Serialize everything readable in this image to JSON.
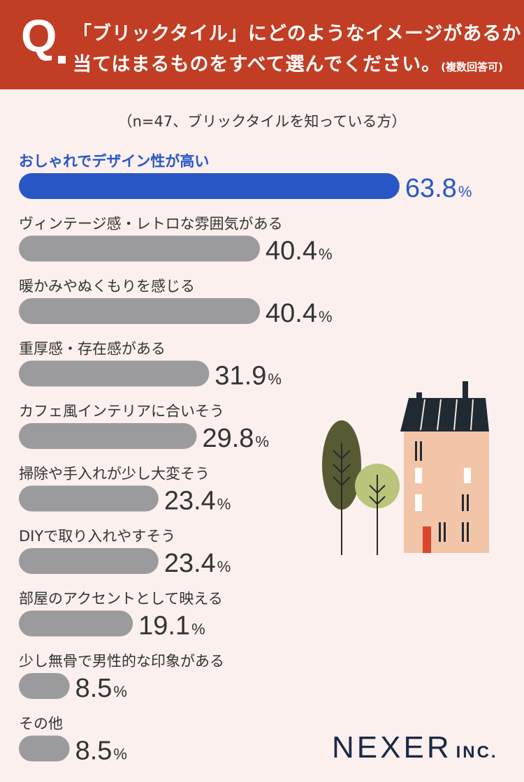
{
  "header": {
    "q_mark": "Q",
    "line1": "「ブリックタイル」にどのようなイメージがあるか",
    "line2": "当てはまるものをすべて選んでください。",
    "note": "(複数回答可)"
  },
  "subtitle": "（n=47、ブリックタイルを知っている方）",
  "chart_data": {
    "type": "bar",
    "orientation": "horizontal",
    "title": "「ブリックタイル」にどのようなイメージがあるか当てはまるものをすべて選んでください。(複数回答可)",
    "subtitle": "（n=47、ブリックタイルを知っている方）",
    "unit": "%",
    "xlim": [
      0,
      100
    ],
    "categories": [
      "おしゃれでデザイン性が高い",
      "ヴィンテージ感・レトロな雰囲気がある",
      "暖かみやぬくもりを感じる",
      "重厚感・存在感がある",
      "カフェ風インテリアに合いそう",
      "掃除や手入れが少し大変そう",
      "DIYで取り入れやすそう",
      "部屋のアクセントとして映える",
      "少し無骨で男性的な印象がある",
      "その他"
    ],
    "values": [
      63.8,
      40.4,
      40.4,
      31.9,
      29.8,
      23.4,
      23.4,
      19.1,
      8.5,
      8.5
    ],
    "highlight_index": 0,
    "colors": {
      "highlight": "#2857c5",
      "default": "#9b9b9e"
    }
  },
  "logo": {
    "main": "NEXER",
    "sub": "INC."
  }
}
